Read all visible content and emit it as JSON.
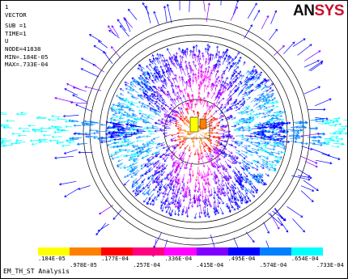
{
  "window_number": "1",
  "info": {
    "plot_type": "VECTOR",
    "sub": "SUB =1",
    "time": "TIME=1",
    "item": "U",
    "node": "NODE=41838",
    "min": "MIN=.184E-05",
    "max": "MAX=.733E-04"
  },
  "logo": {
    "dark": "AN",
    "red": "SYS"
  },
  "legend": {
    "colors": [
      "#ffff00",
      "#ff8000",
      "#ff0000",
      "#ff0080",
      "#ff00ff",
      "#8000ff",
      "#0000ff",
      "#0080ff",
      "#00ffff"
    ],
    "labels_upper": [
      ".184E-05",
      ".177E-04",
      ".336E-04",
      ".495E-04",
      ".654E-04"
    ],
    "labels_lower": [
      ".978E-05",
      ".257E-04",
      ".415E-04",
      ".574E-04",
      ".733E-04"
    ]
  },
  "footer": "EM_TH_ST Analysis"
}
